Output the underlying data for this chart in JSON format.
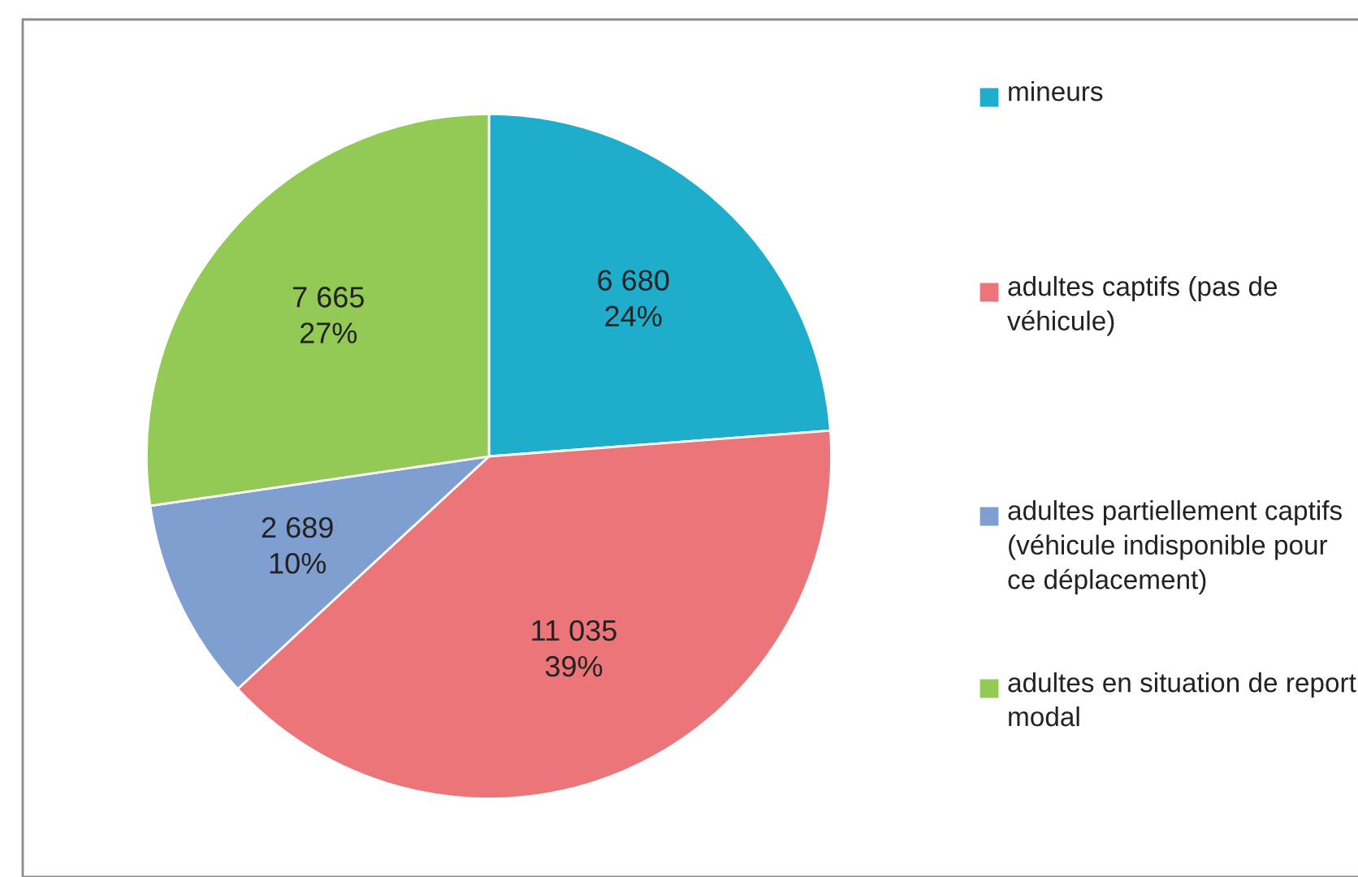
{
  "chart_data": {
    "type": "pie",
    "categories": [
      "mineurs",
      "adultes captifs (pas de véhicule)",
      "adultes partiellement captifs (véhicule indisponible pour ce déplacement)",
      "adultes en situation de report modal"
    ],
    "values": [
      6680,
      11035,
      2689,
      7665
    ],
    "colors": [
      "#1fadcc",
      "#ec7579",
      "#809fd1",
      "#93c955"
    ],
    "value_labels": [
      "6 680\n24%",
      "11 035\n39%",
      "2 689\n10%",
      "7 665\n27%"
    ],
    "legend": "right"
  }
}
